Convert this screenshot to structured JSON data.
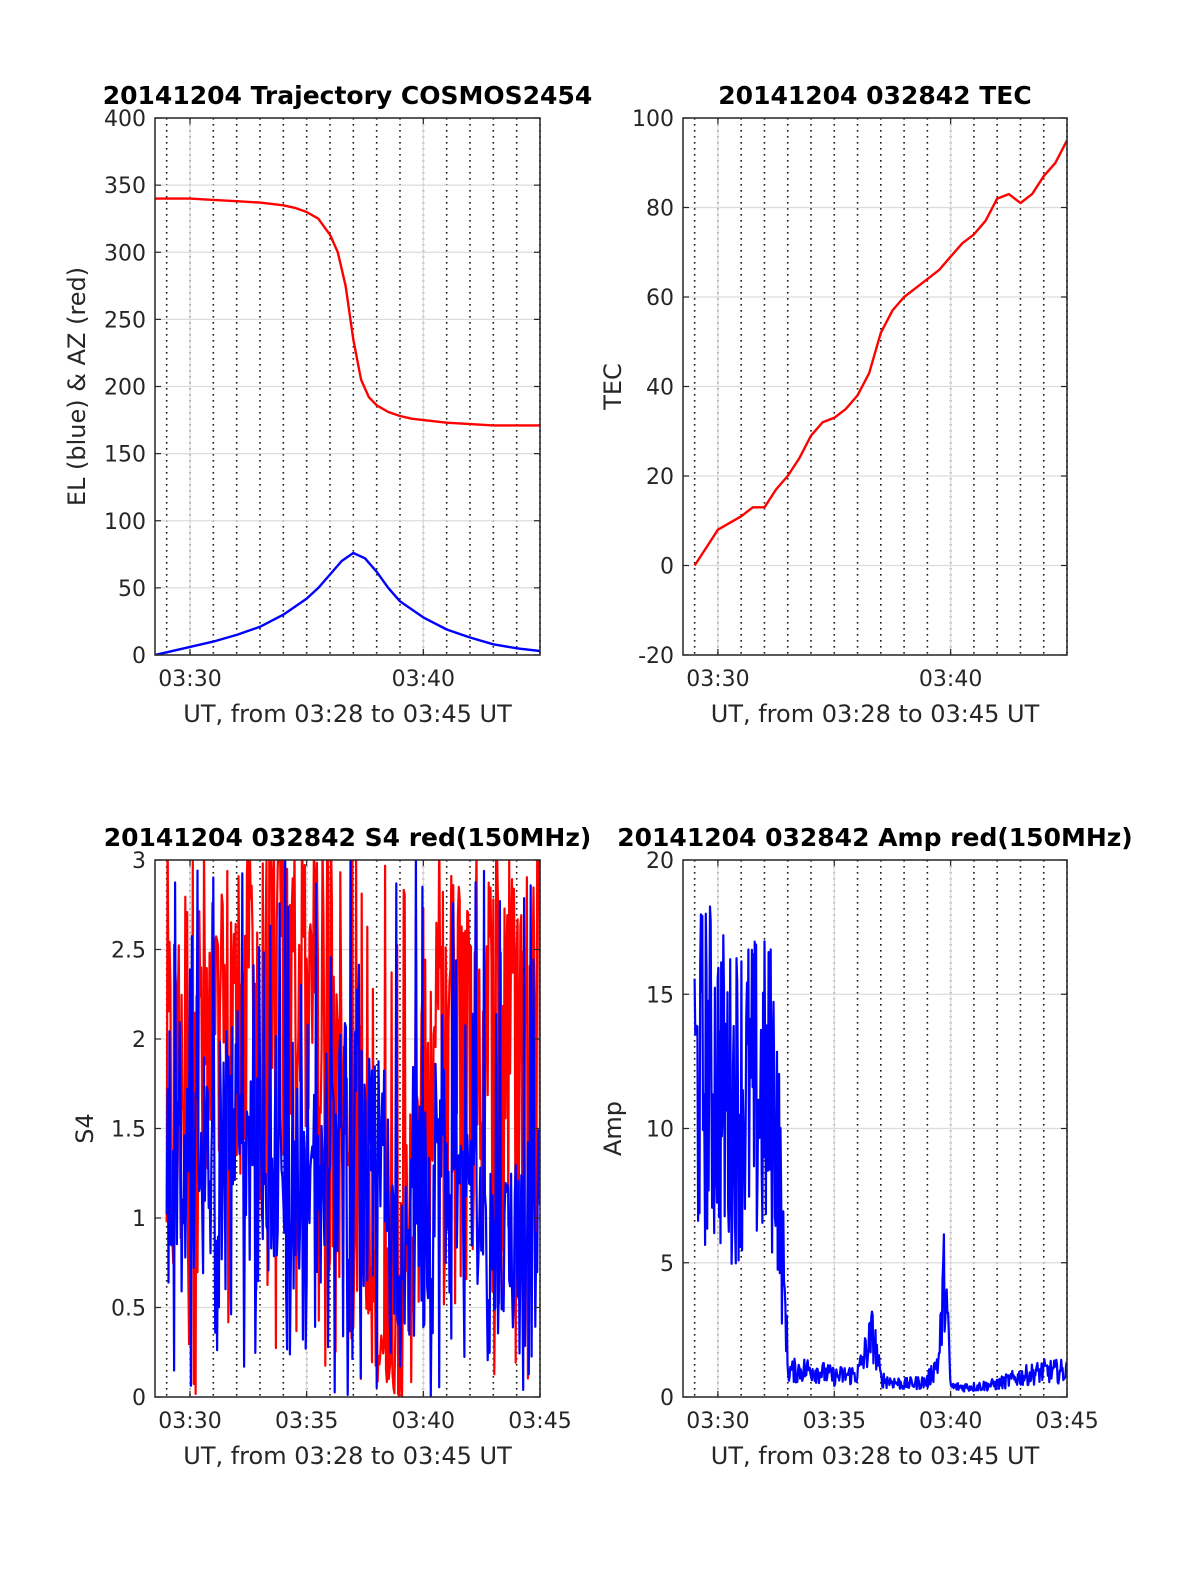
{
  "chart_data": [
    {
      "type": "line",
      "title": "20141204 Trajectory COSMOS2454",
      "xlabel": "UT, from 03:28 to 03:45 UT",
      "ylabel": "EL (blue) & AZ (red)",
      "xlim": [
        "03:28:30",
        "03:45:00"
      ],
      "ylim": [
        0,
        400
      ],
      "x_ticks": [
        "03:30",
        "03:40"
      ],
      "y_ticks": [
        "0",
        "50",
        "100",
        "150",
        "200",
        "250",
        "300",
        "350",
        "400"
      ],
      "grid": true,
      "series": [
        {
          "color": "#ff0000",
          "x": [
            "03:28:30",
            "03:30:00",
            "03:31:00",
            "03:32:00",
            "03:33:00",
            "03:34:00",
            "03:34:30",
            "03:35:00",
            "03:35:30",
            "03:36:00",
            "03:36:20",
            "03:36:40",
            "03:37:00",
            "03:37:20",
            "03:37:40",
            "03:38:00",
            "03:38:30",
            "03:39:00",
            "03:39:30",
            "03:40:00",
            "03:41:00",
            "03:42:00",
            "03:43:00",
            "03:44:00",
            "03:45:00"
          ],
          "values": [
            340,
            340,
            339,
            338,
            337,
            335,
            333,
            330,
            325,
            313,
            300,
            275,
            235,
            205,
            192,
            186,
            181,
            178,
            176,
            175,
            173,
            172,
            171,
            171,
            171
          ]
        },
        {
          "color": "#0000ff",
          "x": [
            "03:28:30",
            "03:29:00",
            "03:30:00",
            "03:31:00",
            "03:32:00",
            "03:33:00",
            "03:34:00",
            "03:35:00",
            "03:35:30",
            "03:36:00",
            "03:36:30",
            "03:37:00",
            "03:37:30",
            "03:38:00",
            "03:38:30",
            "03:39:00",
            "03:40:00",
            "03:41:00",
            "03:42:00",
            "03:43:00",
            "03:44:00",
            "03:45:00"
          ],
          "values": [
            0,
            2,
            6,
            10,
            15,
            21,
            30,
            42,
            50,
            60,
            70,
            76,
            72,
            62,
            50,
            40,
            28,
            19,
            13,
            8,
            5,
            3
          ]
        }
      ]
    },
    {
      "type": "line",
      "title": "20141204 032842 TEC",
      "xlabel": "UT, from 03:28 to 03:45 UT",
      "ylabel": "TEC",
      "xlim": [
        "03:28:30",
        "03:45:00"
      ],
      "ylim": [
        -20,
        100
      ],
      "x_ticks": [
        "03:30",
        "03:40"
      ],
      "y_ticks": [
        "-20",
        "0",
        "20",
        "40",
        "60",
        "80",
        "100"
      ],
      "grid": true,
      "series": [
        {
          "color": "#ff0000",
          "x": [
            "03:29:00",
            "03:29:30",
            "03:30:00",
            "03:31:00",
            "03:31:30",
            "03:32:00",
            "03:32:30",
            "03:33:00",
            "03:33:30",
            "03:34:00",
            "03:34:30",
            "03:35:00",
            "03:35:30",
            "03:36:00",
            "03:36:30",
            "03:37:00",
            "03:37:30",
            "03:38:00",
            "03:38:30",
            "03:39:00",
            "03:39:30",
            "03:40:00",
            "03:40:30",
            "03:41:00",
            "03:41:30",
            "03:42:00",
            "03:42:30",
            "03:43:00",
            "03:43:30",
            "03:44:00",
            "03:44:30",
            "03:45:00"
          ],
          "values": [
            0,
            4,
            8,
            11,
            13,
            13,
            17,
            20,
            24,
            29,
            32,
            33,
            35,
            38,
            43,
            52,
            57,
            60,
            62,
            64,
            66,
            69,
            72,
            74,
            77,
            82,
            83,
            81,
            83,
            87,
            90,
            95
          ]
        }
      ]
    },
    {
      "type": "line",
      "title": "20141204 032842 S4 red(150MHz)",
      "xlabel": "UT, from 03:28 to 03:45 UT",
      "ylabel": "S4",
      "xlim": [
        "03:28:30",
        "03:45:00"
      ],
      "ylim": [
        0,
        3
      ],
      "x_ticks": [
        "03:30",
        "03:35",
        "03:40",
        "03:45"
      ],
      "y_ticks": [
        "0",
        "0.5",
        "1",
        "1.5",
        "2",
        "2.5",
        "3"
      ],
      "grid": true,
      "series": [
        {
          "color": "#ff0000",
          "x": [
            "03:29:00",
            "03:30:00",
            "03:31:00",
            "03:32:00",
            "03:33:00",
            "03:34:00",
            "03:35:00",
            "03:36:00",
            "03:37:00",
            "03:38:00",
            "03:39:00",
            "03:40:00",
            "03:41:00",
            "03:42:00",
            "03:43:00",
            "03:44:00",
            "03:45:00"
          ],
          "values": [
            2.2,
            2.5,
            2.2,
            2.6,
            2.6,
            2.9,
            2.8,
            3.0,
            1.0,
            0.5,
            0.0,
            2.0,
            2.5,
            2.6,
            2.8,
            2.5,
            2.9
          ]
        },
        {
          "color": "#0000ff",
          "x": [
            "03:29:00",
            "03:30:00",
            "03:31:00",
            "03:32:00",
            "03:33:00",
            "03:34:00",
            "03:35:00",
            "03:36:00",
            "03:37:00",
            "03:38:00",
            "03:39:00",
            "03:40:00",
            "03:41:00",
            "03:42:00",
            "03:43:00",
            "03:44:00",
            "03:45:00"
          ],
          "values": [
            1.4,
            1.5,
            1.4,
            1.6,
            1.4,
            1.2,
            1.3,
            1.6,
            1.8,
            1.6,
            0.6,
            1.5,
            1.5,
            1.3,
            0.9,
            1.0,
            1.1
          ]
        }
      ]
    },
    {
      "type": "line",
      "title": "20141204 032842 Amp red(150MHz)",
      "xlabel": "UT, from 03:28 to 03:45 UT",
      "ylabel": "Amp",
      "xlim": [
        "03:28:30",
        "03:45:00"
      ],
      "ylim": [
        0,
        20
      ],
      "x_ticks": [
        "03:30",
        "03:35",
        "03:40",
        "03:45"
      ],
      "y_ticks": [
        "0",
        "5",
        "10",
        "15",
        "20"
      ],
      "grid": true,
      "series": [
        {
          "color": "#0000ff",
          "x": [
            "03:29:00",
            "03:29:30",
            "03:30:00",
            "03:30:30",
            "03:31:00",
            "03:31:30",
            "03:32:00",
            "03:32:30",
            "03:33:00",
            "03:34:00",
            "03:35:00",
            "03:36:00",
            "03:36:40",
            "03:37:00",
            "03:38:00",
            "03:39:00",
            "03:39:30",
            "03:39:45",
            "03:40:00",
            "03:41:00",
            "03:42:00",
            "03:43:00",
            "03:44:00",
            "03:45:00"
          ],
          "values": [
            17,
            18,
            17.5,
            16,
            17,
            16.5,
            16.5,
            16.5,
            1.0,
            1.1,
            0.8,
            0.9,
            2.5,
            0.7,
            0.5,
            0.6,
            1.5,
            5.0,
            0.4,
            0.4,
            0.5,
            0.8,
            1.0,
            1.0
          ]
        }
      ]
    }
  ]
}
